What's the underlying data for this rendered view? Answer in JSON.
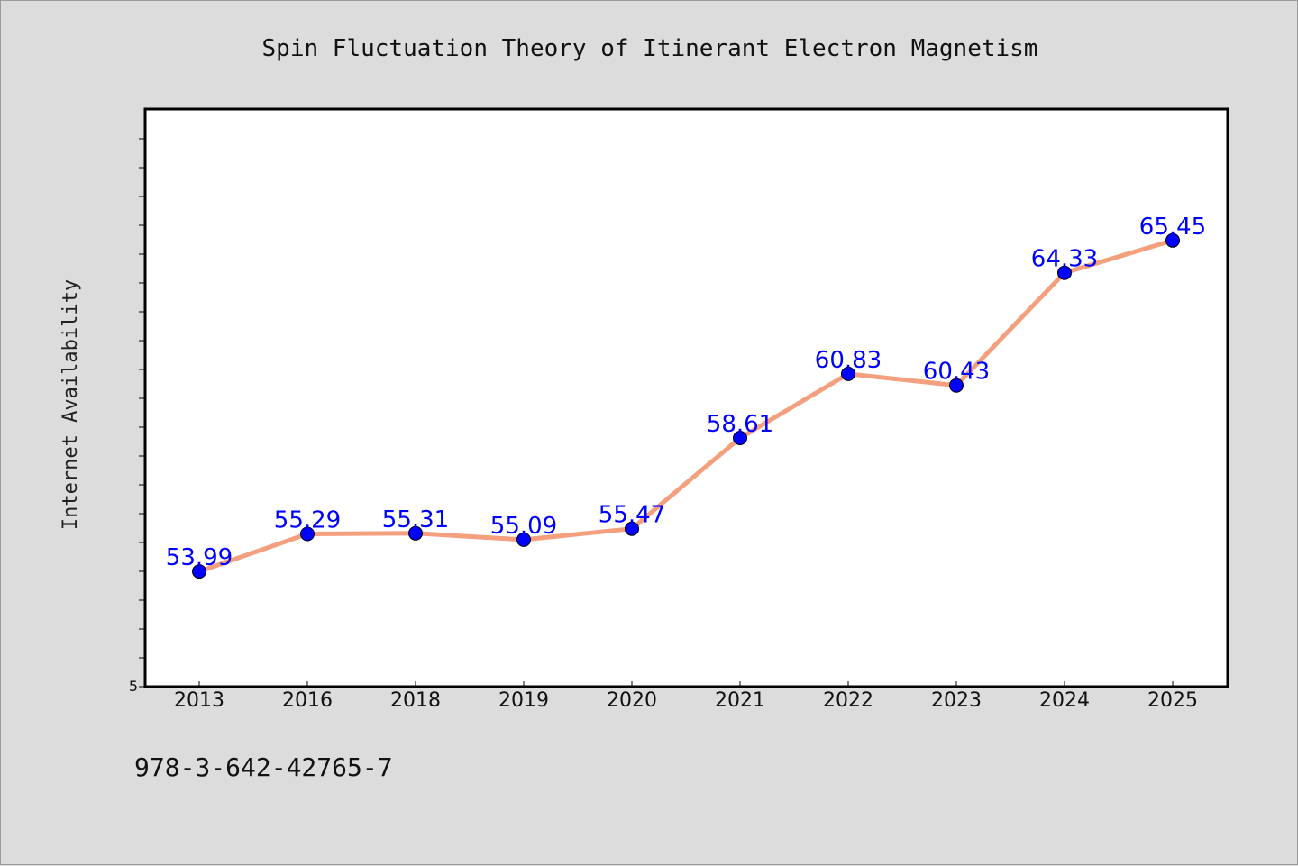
{
  "chart_data": {
    "type": "line",
    "title": "Spin Fluctuation Theory of Itinerant Electron Magnetism",
    "xlabel": "",
    "ylabel": "Internet Availability",
    "categories": [
      "2013",
      "2016",
      "2018",
      "2019",
      "2020",
      "2021",
      "2022",
      "2023",
      "2024",
      "2025"
    ],
    "values": [
      53.99,
      55.29,
      55.31,
      55.09,
      55.47,
      58.61,
      60.83,
      60.43,
      64.33,
      65.45
    ],
    "value_labels": [
      "53.99",
      "55.29",
      "55.31",
      "55.09",
      "55.47",
      "58.61",
      "60.83",
      "60.43",
      "64.33",
      "65.45"
    ],
    "y_tick_label": "5",
    "ylim": [
      50,
      70
    ],
    "grid": false,
    "colors": {
      "line": "#f4a07e",
      "marker": "#0000ff",
      "data_label": "#0000ff",
      "plot_background": "#ffffff",
      "page_background": "#dcdcdc"
    }
  },
  "footer": {
    "isbn": "978-3-642-42765-7"
  }
}
